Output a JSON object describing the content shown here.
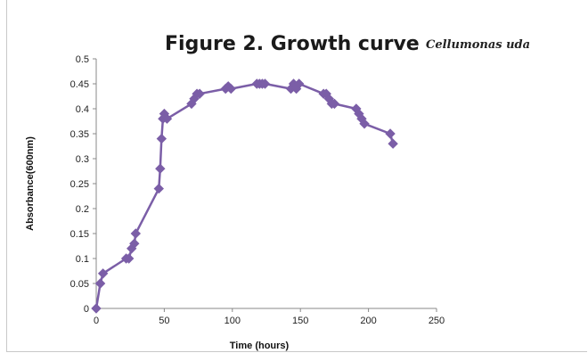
{
  "chart_data": {
    "type": "line",
    "title": "Figure 2. Growth curve",
    "subtitle": "Cellumonas uda",
    "xlabel": "Time (hours)",
    "ylabel": "Absorbance(600nm)",
    "xlim": [
      0,
      250
    ],
    "ylim": [
      0,
      0.5
    ],
    "x_ticks": [
      "0",
      "50",
      "100",
      "150",
      "200",
      "250"
    ],
    "y_ticks": [
      "0",
      "0.05",
      "0.1",
      "0.15",
      "0.2",
      "0.25",
      "0.3",
      "0.35",
      "0.4",
      "0.45",
      "0.5"
    ],
    "grid": false,
    "legend": "none",
    "series": [
      {
        "color": "#7b5ea7",
        "marker": "diamond",
        "x": [
          0,
          3,
          5,
          22,
          24,
          26,
          28,
          29,
          46,
          47,
          48,
          49,
          50,
          52,
          70,
          72,
          74,
          76,
          95,
          97,
          99,
          118,
          120,
          122,
          124,
          143,
          145,
          147,
          149,
          167,
          169,
          171,
          173,
          175,
          191,
          193,
          195,
          197,
          216,
          218
        ],
        "y": [
          0,
          0.05,
          0.07,
          0.1,
          0.1,
          0.12,
          0.13,
          0.15,
          0.24,
          0.28,
          0.34,
          0.38,
          0.39,
          0.38,
          0.41,
          0.42,
          0.43,
          0.43,
          0.44,
          0.445,
          0.44,
          0.45,
          0.45,
          0.45,
          0.45,
          0.44,
          0.45,
          0.44,
          0.45,
          0.43,
          0.43,
          0.42,
          0.41,
          0.41,
          0.4,
          0.39,
          0.38,
          0.37,
          0.35,
          0.33
        ]
      }
    ]
  }
}
